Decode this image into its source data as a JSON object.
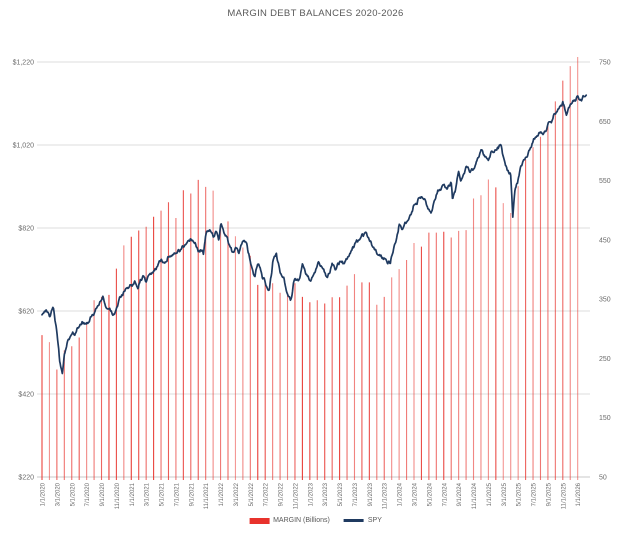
{
  "chart": {
    "title": "MARGIN DEBT BALANCES 2020-2026",
    "legend": {
      "margin": {
        "label": "MARGIN (Billions)",
        "color": "#e8322c"
      },
      "spy": {
        "label": "SPY",
        "color": "#1f3a60"
      }
    }
  },
  "chart_data": {
    "type": "bar+line combo",
    "title": "MARGIN DEBT BALANCES 2020-2026",
    "grid": "horizontal-only",
    "legend_position": "bottom-center",
    "colors": {
      "bars": "#e8322c",
      "line": "#1f3a60",
      "gridline": "#dcdcdc",
      "axis_line": "#c9c9c9",
      "tick_text": "#6b6b6b"
    },
    "left_axis": {
      "series": "MARGIN (Billions)",
      "min": 220,
      "max": 1220,
      "tick_labels": [
        "$1,220",
        "$1,020",
        "$820",
        "$620",
        "$420",
        "$220"
      ],
      "tick_values": [
        1220,
        1020,
        820,
        620,
        420,
        220
      ]
    },
    "right_axis": {
      "series": "SPY",
      "min": 50,
      "max": 750,
      "tick_labels": [
        "750",
        "650",
        "550",
        "450",
        "350",
        "250",
        "150",
        "50"
      ],
      "tick_values": [
        750,
        650,
        550,
        450,
        350,
        250,
        150,
        50
      ]
    },
    "x_axis": {
      "start": "1/1/2020",
      "end": "1/1/2026",
      "interval": "monthly, labeled every 2 months",
      "tick_labels": [
        "1/1/2020",
        "3/1/2020",
        "5/1/2020",
        "7/1/2020",
        "9/1/2020",
        "11/1/2020",
        "1/1/2021",
        "3/1/2021",
        "5/1/2021",
        "7/1/2021",
        "9/1/2021",
        "11/1/2021",
        "1/1/2022",
        "3/1/2022",
        "5/1/2022",
        "7/1/2022",
        "9/1/2022",
        "11/1/2022",
        "1/1/2023",
        "3/1/2023",
        "5/1/2023",
        "7/1/2023",
        "9/1/2023",
        "11/1/2023",
        "1/1/2024",
        "3/1/2024",
        "5/1/2024",
        "7/1/2024",
        "9/1/2024",
        "11/1/2024",
        "1/1/2025",
        "3/1/2025",
        "5/1/2025",
        "7/1/2025",
        "9/1/2025",
        "11/1/2025",
        "1/1/2026"
      ]
    },
    "series": [
      {
        "name": "MARGIN (Billions)",
        "type": "bar",
        "axis": "left",
        "start_month": "1/2020",
        "frequency": "monthly",
        "values": [
          562,
          545,
          479,
          525,
          535,
          556,
          588,
          646,
          654,
          659,
          722,
          778,
          799,
          814,
          823,
          847,
          862,
          882,
          844,
          911,
          903,
          936,
          919,
          910,
          830,
          836,
          800,
          773,
          753,
          683,
          688,
          687,
          664,
          665,
          687,
          654,
          641,
          646,
          638,
          653,
          653,
          681,
          709,
          689,
          689,
          635,
          654,
          701,
          721,
          743,
          784,
          775,
          809,
          809,
          811,
          797,
          813,
          815,
          891,
          899,
          937,
          918,
          880,
          856,
          921,
          985,
          1015,
          1040,
          1065,
          1125,
          1175,
          1210,
          1232
        ]
      },
      {
        "name": "SPY",
        "type": "line",
        "axis": "right",
        "anchors_note": "pairs of [months since 1/2020, SPY value] read from plot",
        "anchors": [
          [
            0,
            324
          ],
          [
            0.5,
            332
          ],
          [
            1,
            321
          ],
          [
            1.5,
            337
          ],
          [
            2,
            296
          ],
          [
            2.4,
            244
          ],
          [
            2.75,
            222
          ],
          [
            3,
            258
          ],
          [
            3.5,
            280
          ],
          [
            4,
            290
          ],
          [
            4.5,
            293
          ],
          [
            5,
            304
          ],
          [
            5.5,
            311
          ],
          [
            6,
            308
          ],
          [
            6.5,
            318
          ],
          [
            7,
            326
          ],
          [
            7.5,
            339
          ],
          [
            8,
            349
          ],
          [
            8.2,
            357
          ],
          [
            8.6,
            334
          ],
          [
            9,
            334
          ],
          [
            9.7,
            323
          ],
          [
            10,
            331
          ],
          [
            10.3,
            350
          ],
          [
            11,
            362
          ],
          [
            11.5,
            369
          ],
          [
            12,
            373
          ],
          [
            12.5,
            378
          ],
          [
            12.9,
            368
          ],
          [
            13.5,
            390
          ],
          [
            14,
            380
          ],
          [
            14.3,
            389
          ],
          [
            15,
            396
          ],
          [
            16,
            417
          ],
          [
            16.5,
            411
          ],
          [
            17,
            420
          ],
          [
            18,
            428
          ],
          [
            19,
            438
          ],
          [
            20,
            451
          ],
          [
            20.6,
            445
          ],
          [
            21,
            429
          ],
          [
            21.3,
            434
          ],
          [
            21.7,
            427
          ],
          [
            22,
            459
          ],
          [
            22.6,
            468
          ],
          [
            23,
            455
          ],
          [
            23.4,
            463
          ],
          [
            23.75,
            451
          ],
          [
            24,
            474
          ],
          [
            24.1,
            477
          ],
          [
            24.5,
            462
          ],
          [
            25,
            449
          ],
          [
            25.6,
            427
          ],
          [
            26,
            436
          ],
          [
            26.5,
            429
          ],
          [
            27,
            451
          ],
          [
            27.5,
            444
          ],
          [
            28,
            412
          ],
          [
            28.6,
            386
          ],
          [
            29,
            412
          ],
          [
            29.5,
            393
          ],
          [
            30,
            377
          ],
          [
            30.55,
            363
          ],
          [
            31,
            411
          ],
          [
            31.5,
            428
          ],
          [
            32,
            395
          ],
          [
            32.5,
            384
          ],
          [
            33,
            357
          ],
          [
            33.4,
            348
          ],
          [
            34,
            386
          ],
          [
            34.5,
            380
          ],
          [
            35,
            407
          ],
          [
            35.5,
            394
          ],
          [
            36,
            382
          ],
          [
            36.5,
            390
          ],
          [
            37,
            406
          ],
          [
            37.2,
            413
          ],
          [
            38,
            396
          ],
          [
            38.3,
            385
          ],
          [
            39,
            409
          ],
          [
            39.5,
            401
          ],
          [
            40,
            415
          ],
          [
            40.5,
            411
          ],
          [
            41,
            417
          ],
          [
            42,
            443
          ],
          [
            42.5,
            450
          ],
          [
            43,
            457
          ],
          [
            43.6,
            463
          ],
          [
            44,
            450
          ],
          [
            44.5,
            439
          ],
          [
            45,
            427
          ],
          [
            45.5,
            421
          ],
          [
            46,
            418
          ],
          [
            46.85,
            410
          ],
          [
            47,
            425
          ],
          [
            47.5,
            443
          ],
          [
            48,
            475
          ],
          [
            48.5,
            470
          ],
          [
            49,
            482
          ],
          [
            49.5,
            490
          ],
          [
            50,
            508
          ],
          [
            51,
            523
          ],
          [
            51.5,
            517
          ],
          [
            52,
            500
          ],
          [
            52.3,
            495
          ],
          [
            53,
            527
          ],
          [
            54,
            544
          ],
          [
            54.5,
            535
          ],
          [
            55,
            550
          ],
          [
            55.18,
            517
          ],
          [
            55.5,
            532
          ],
          [
            56,
            563
          ],
          [
            56.3,
            548
          ],
          [
            57,
            573
          ],
          [
            57.5,
            567
          ],
          [
            58,
            568
          ],
          [
            58.5,
            585
          ],
          [
            59,
            602
          ],
          [
            59.5,
            590
          ],
          [
            60,
            586
          ],
          [
            60.5,
            598
          ],
          [
            61,
            601
          ],
          [
            61.6,
            611
          ],
          [
            62,
            594
          ],
          [
            62.3,
            575
          ],
          [
            63,
            559
          ],
          [
            63.28,
            489
          ],
          [
            63.5,
            527
          ],
          [
            63.7,
            540
          ],
          [
            64,
            554
          ],
          [
            64.5,
            578
          ],
          [
            65,
            589
          ],
          [
            65.5,
            600
          ],
          [
            66,
            617
          ],
          [
            66.5,
            625
          ],
          [
            67,
            632
          ],
          [
            67.5,
            628
          ],
          [
            68,
            645
          ],
          [
            68.5,
            652
          ],
          [
            69,
            663
          ],
          [
            69.5,
            672
          ],
          [
            70,
            682
          ],
          [
            70.5,
            662
          ],
          [
            71,
            678
          ],
          [
            71.5,
            685
          ],
          [
            72,
            690
          ],
          [
            72.5,
            686
          ],
          [
            73.2,
            695
          ]
        ]
      }
    ]
  }
}
